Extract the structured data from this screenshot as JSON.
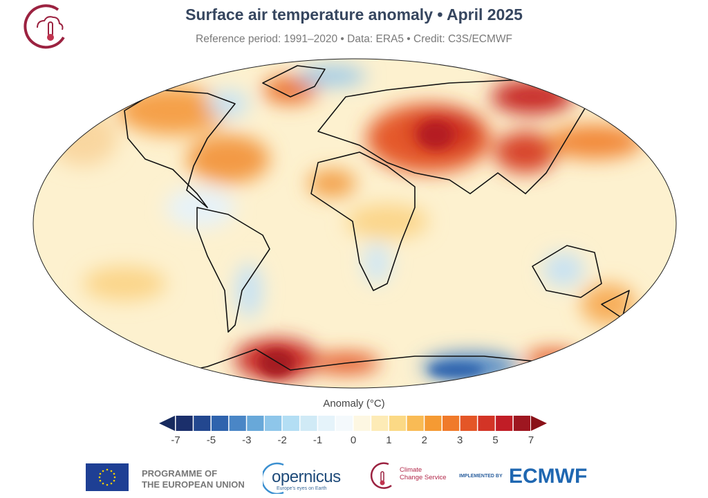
{
  "header": {
    "title": "Surface air temperature anomaly • April 2025",
    "subtitle": "Reference period: 1991–2020 • Data: ERA5 • Credit: C3S/ECMWF"
  },
  "map": {
    "projection": "Robinson",
    "variable": "surface air temperature anomaly"
  },
  "colorbar": {
    "label": "Anomaly (°C)",
    "ticks": [
      "-7",
      "-5",
      "-3",
      "-2",
      "-1",
      "0",
      "1",
      "2",
      "3",
      "5",
      "7"
    ],
    "colors": [
      "#1b2f6b",
      "#23478f",
      "#2f63ad",
      "#4a86c6",
      "#68a8d9",
      "#8ec6ea",
      "#b3def4",
      "#d0eaf6",
      "#e5f3fa",
      "#f4f9fc",
      "#fdf7e2",
      "#fdebb6",
      "#fbd985",
      "#f9bb55",
      "#f59a33",
      "#f07a2a",
      "#e45627",
      "#d33426",
      "#c11d26",
      "#9e1620"
    ],
    "under_color": "#172a5e",
    "over_color": "#8a1118"
  },
  "footer": {
    "eu_line1": "PROGRAMME OF",
    "eu_line2": "THE EUROPEAN UNION",
    "copernicus": "opernicus",
    "copernicus_tagline": "Europe's eyes on Earth",
    "c3s_line1": "Climate",
    "c3s_line2": "Change Service",
    "implemented_by": "IMPLEMENTED BY",
    "ecmwf": "ECMWF"
  }
}
